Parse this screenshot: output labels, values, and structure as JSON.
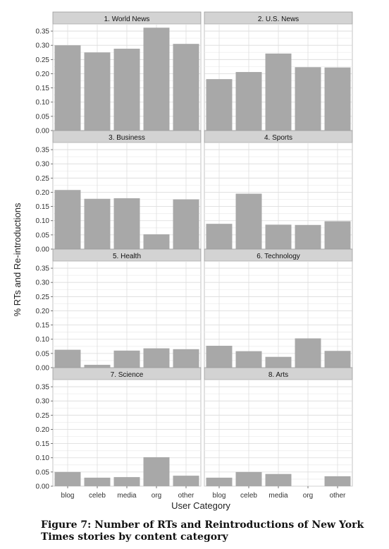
{
  "chart_data": {
    "type": "bar",
    "ylabel": "% RTs and Re-introductions",
    "xlabel": "User Category",
    "categories": [
      "blog",
      "celeb",
      "media",
      "org",
      "other"
    ],
    "ylim": [
      0,
      0.375
    ],
    "yticks": [
      "0.00",
      "0.05",
      "0.10",
      "0.15",
      "0.20",
      "0.25",
      "0.30",
      "0.35"
    ],
    "grid": true,
    "bar_color": "#a8a8a8",
    "strip_color": "#d3d3d3",
    "panels": [
      {
        "title": "1. World News",
        "values": [
          0.3,
          0.275,
          0.288,
          0.362,
          0.305
        ]
      },
      {
        "title": "2. U.S. News",
        "values": [
          0.181,
          0.206,
          0.271,
          0.223,
          0.222
        ]
      },
      {
        "title": "3. Business",
        "values": [
          0.208,
          0.177,
          0.179,
          0.052,
          0.175
        ]
      },
      {
        "title": "4. Sports",
        "values": [
          0.089,
          0.195,
          0.086,
          0.085,
          0.098
        ]
      },
      {
        "title": "5. Health",
        "values": [
          0.063,
          0.01,
          0.06,
          0.068,
          0.065
        ]
      },
      {
        "title": "6. Technology",
        "values": [
          0.077,
          0.058,
          0.038,
          0.103,
          0.059
        ]
      },
      {
        "title": "7. Science",
        "values": [
          0.05,
          0.03,
          0.032,
          0.102,
          0.037
        ]
      },
      {
        "title": "8. Arts",
        "values": [
          0.03,
          0.05,
          0.043,
          0.0,
          0.035
        ]
      }
    ]
  },
  "caption": "Figure 7:  Number of RTs and Reintroductions of New York Times stories by content category"
}
